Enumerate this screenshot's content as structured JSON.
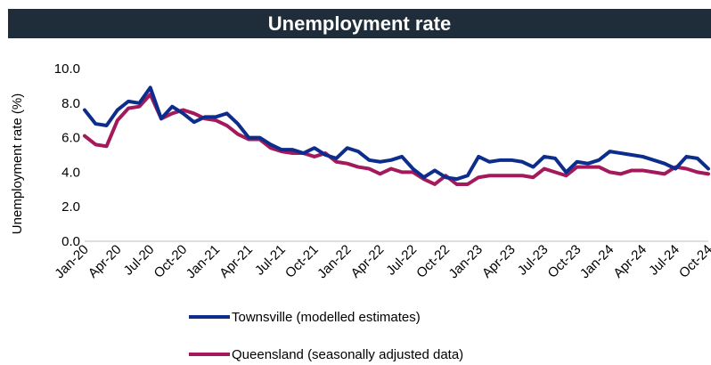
{
  "chart_data": {
    "type": "line",
    "title": "Unemployment rate",
    "ylabel": "Unemployment rate (%)",
    "xlabel": "",
    "ylim": [
      0,
      10
    ],
    "yticks": [
      "0.0",
      "2.0",
      "4.0",
      "6.0",
      "8.0",
      "10.0"
    ],
    "grid": false,
    "legend_position": "bottom",
    "x": [
      "Jan-20",
      "Feb-20",
      "Mar-20",
      "Apr-20",
      "May-20",
      "Jun-20",
      "Jul-20",
      "Aug-20",
      "Sep-20",
      "Oct-20",
      "Nov-20",
      "Dec-20",
      "Jan-21",
      "Feb-21",
      "Mar-21",
      "Apr-21",
      "May-21",
      "Jun-21",
      "Jul-21",
      "Aug-21",
      "Sep-21",
      "Oct-21",
      "Nov-21",
      "Dec-21",
      "Jan-22",
      "Feb-22",
      "Mar-22",
      "Apr-22",
      "May-22",
      "Jun-22",
      "Jul-22",
      "Aug-22",
      "Sep-22",
      "Oct-22",
      "Nov-22",
      "Dec-22",
      "Jan-23",
      "Feb-23",
      "Mar-23",
      "Apr-23",
      "May-23",
      "Jun-23",
      "Jul-23",
      "Aug-23",
      "Sep-23",
      "Oct-23",
      "Nov-23",
      "Dec-23",
      "Jan-24",
      "Feb-24",
      "Mar-24",
      "Apr-24",
      "May-24",
      "Jun-24",
      "Jul-24",
      "Aug-24",
      "Sep-24",
      "Oct-24"
    ],
    "tick_labels": [
      "Jan-20",
      "Apr-20",
      "Jul-20",
      "Oct-20",
      "Jan-21",
      "Apr-21",
      "Jul-21",
      "Oct-21",
      "Jan-22",
      "Apr-22",
      "Jul-22",
      "Oct-22",
      "Jan-23",
      "Apr-23",
      "Jul-23",
      "Oct-23",
      "Jan-24",
      "Apr-24",
      "Jul-24",
      "Oct-24"
    ],
    "series": [
      {
        "name": "Townsville (modelled estimates)",
        "color": "#0d2d8c",
        "values": [
          7.6,
          6.8,
          6.7,
          7.6,
          8.1,
          8.0,
          8.9,
          7.1,
          7.8,
          7.4,
          6.9,
          7.2,
          7.2,
          7.4,
          6.8,
          6.0,
          6.0,
          5.6,
          5.3,
          5.3,
          5.1,
          5.4,
          5.0,
          4.8,
          5.4,
          5.2,
          4.7,
          4.6,
          4.7,
          4.9,
          4.2,
          3.7,
          4.1,
          3.7,
          3.6,
          3.8,
          4.9,
          4.6,
          4.7,
          4.7,
          4.6,
          4.3,
          4.9,
          4.8,
          4.0,
          4.6,
          4.5,
          4.7,
          5.2,
          5.1,
          5.0,
          4.9,
          4.7,
          4.5,
          4.2,
          4.9,
          4.8,
          4.2
        ]
      },
      {
        "name": "Queensland (seasonally adjusted data)",
        "color": "#a3195b",
        "values": [
          6.1,
          5.6,
          5.5,
          7.0,
          7.7,
          7.8,
          8.5,
          7.1,
          7.4,
          7.6,
          7.4,
          7.1,
          7.0,
          6.7,
          6.2,
          5.9,
          5.9,
          5.4,
          5.2,
          5.1,
          5.1,
          4.9,
          5.1,
          4.6,
          4.5,
          4.3,
          4.2,
          3.9,
          4.2,
          4.0,
          4.0,
          3.6,
          3.3,
          3.8,
          3.3,
          3.3,
          3.7,
          3.8,
          3.8,
          3.8,
          3.8,
          3.7,
          4.2,
          4.0,
          3.8,
          4.3,
          4.3,
          4.3,
          4.0,
          3.9,
          4.1,
          4.1,
          4.0,
          3.9,
          4.3,
          4.2,
          4.0,
          3.9
        ]
      }
    ]
  }
}
